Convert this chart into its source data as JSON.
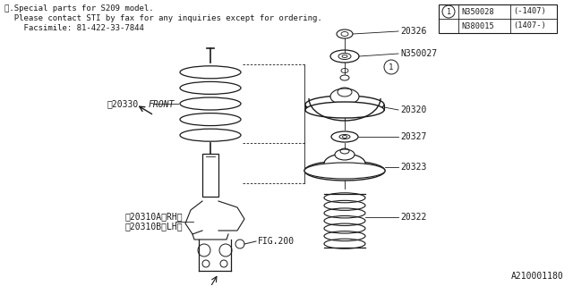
{
  "bg_color": "#ffffff",
  "line_color": "#1a1a1a",
  "text_color": "#1a1a1a",
  "header_lines": [
    "※.Special parts for S209 model.",
    "  Please contact STI by fax for any inquiries except for ordering.",
    "    Facsimile: 81-422-33-7844"
  ],
  "table_rows": [
    {
      "circle": "1",
      "part": "N350028",
      "range": "(-1407)"
    },
    {
      "circle": "",
      "part": "N380015",
      "range": "(1407-)"
    }
  ],
  "watermark": "A210001180",
  "fig_width": 6.4,
  "fig_height": 3.2,
  "dpi": 100
}
